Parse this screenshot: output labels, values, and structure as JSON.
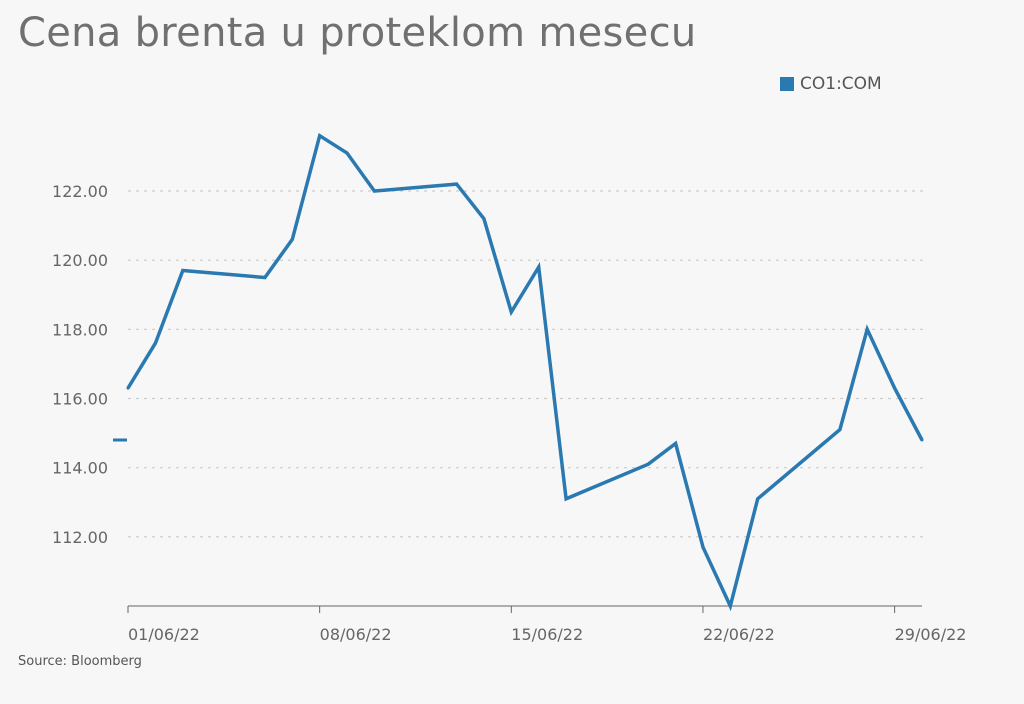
{
  "title": "Cena brenta u proteklom mesecu",
  "source": "Source: Bloomberg",
  "colors": {
    "series": "#2a79b0",
    "grid": "#cccccc",
    "axis": "#666666",
    "text": "#666666"
  },
  "chart_data": {
    "type": "line",
    "title": "Cena brenta u proteklom mesecu",
    "xlabel": "",
    "ylabel": "",
    "legend_position": "top-right",
    "grid": true,
    "x_dates": [
      "2022-06-01",
      "2022-06-02",
      "2022-06-03",
      "2022-06-06",
      "2022-06-07",
      "2022-06-08",
      "2022-06-09",
      "2022-06-10",
      "2022-06-13",
      "2022-06-14",
      "2022-06-15",
      "2022-06-16",
      "2022-06-17",
      "2022-06-20",
      "2022-06-21",
      "2022-06-22",
      "2022-06-23",
      "2022-06-24",
      "2022-06-27",
      "2022-06-28",
      "2022-06-29",
      "2022-06-30"
    ],
    "x_range": [
      "2022-06-01",
      "2022-06-30"
    ],
    "ylim": [
      110,
      124.4
    ],
    "y_ticks": [
      112,
      114,
      116,
      118,
      120,
      122
    ],
    "y_tick_labels": [
      "112.00",
      "114.00",
      "116.00",
      "118.00",
      "120.00",
      "122.00"
    ],
    "x_ticks": [
      "2022-06-01",
      "2022-06-08",
      "2022-06-15",
      "2022-06-22",
      "2022-06-29"
    ],
    "x_tick_labels": [
      "01/06/22",
      "08/06/22",
      "15/06/22",
      "22/06/22",
      "29/06/22"
    ],
    "series": [
      {
        "name": "CO1:COM",
        "color": "#2a79b0",
        "values": [
          116.3,
          117.6,
          119.7,
          119.5,
          120.6,
          123.6,
          123.1,
          122.0,
          122.2,
          121.2,
          118.5,
          119.8,
          113.1,
          114.1,
          114.7,
          111.7,
          110.0,
          113.1,
          115.1,
          118.0,
          116.3,
          114.8
        ],
        "last_value_marker": 114.8
      }
    ]
  }
}
